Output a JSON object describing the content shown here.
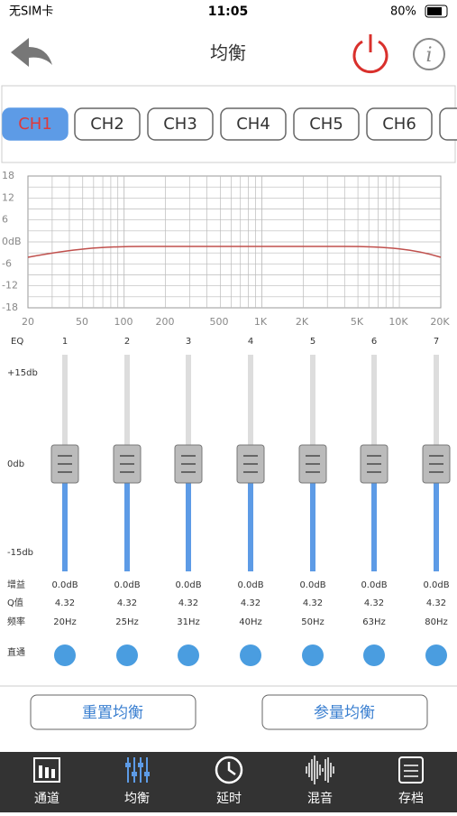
{
  "status_bar": {
    "carrier": "无SIM卡",
    "time": "11:05",
    "battery": "80%"
  },
  "header": {
    "title": "均衡"
  },
  "channels": [
    "CH1",
    "CH2",
    "CH3",
    "CH4",
    "CH5",
    "CH6"
  ],
  "graph": {
    "y_labels": [
      "18",
      "12",
      "6",
      "0dB",
      "-6",
      "-12",
      "-18"
    ],
    "x_labels": [
      "20",
      "50",
      "100",
      "200",
      "500",
      "1K",
      "2K",
      "5K",
      "10K",
      "20K"
    ]
  },
  "eq": {
    "title": "EQ",
    "max_label": "+15db",
    "mid_label": "0db",
    "min_label": "-15db",
    "gain_label": "增益",
    "q_label": "Q值",
    "freq_label": "频率",
    "bypass_label": "直通",
    "bands": [
      {
        "number": "1",
        "gain": "0.0dB",
        "q": "4.32",
        "freq": "20Hz"
      },
      {
        "number": "2",
        "gain": "0.0dB",
        "q": "4.32",
        "freq": "25Hz"
      },
      {
        "number": "3",
        "gain": "0.0dB",
        "q": "4.32",
        "freq": "31Hz"
      },
      {
        "number": "4",
        "gain": "0.0dB",
        "q": "4.32",
        "freq": "40Hz"
      },
      {
        "number": "5",
        "gain": "0.0dB",
        "q": "4.32",
        "freq": "50Hz"
      },
      {
        "number": "6",
        "gain": "0.0dB",
        "q": "4.32",
        "freq": "63Hz"
      },
      {
        "number": "7",
        "gain": "0.0dB",
        "q": "4.32",
        "freq": "80Hz"
      }
    ]
  },
  "buttons": [
    "重置均衡",
    "参量均衡"
  ],
  "tabs": [
    "通道",
    "均衡",
    "延时",
    "混音",
    "存档"
  ]
}
